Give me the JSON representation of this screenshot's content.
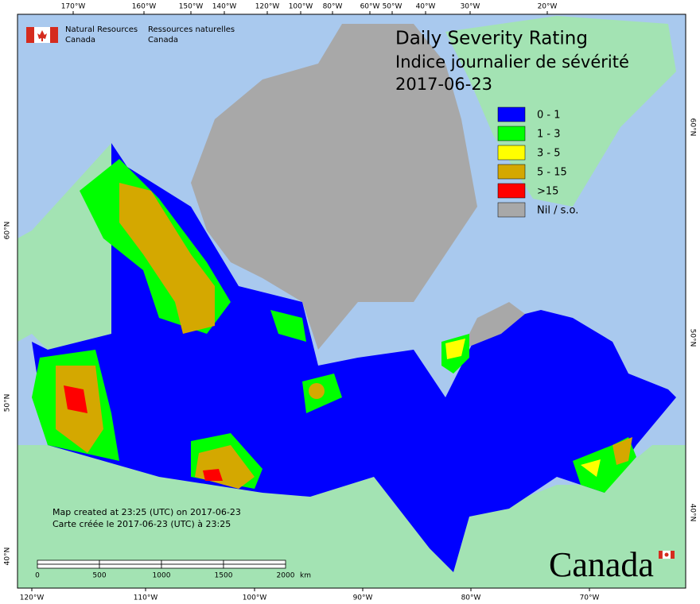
{
  "header": {
    "agency_en": [
      "Natural Resources",
      "Canada"
    ],
    "agency_fr": [
      "Ressources naturelles",
      "Canada"
    ]
  },
  "title": [
    "Daily Severity Rating",
    "Indice journalier de sévérité",
    "2017-06-23"
  ],
  "legend": [
    {
      "label": "0 - 1",
      "color": "#0000ff"
    },
    {
      "label": "1 - 3",
      "color": "#00ff00"
    },
    {
      "label": "3 - 5",
      "color": "#ffff00"
    },
    {
      "label": "5 - 15",
      "color": "#d4a800"
    },
    {
      "label": ">15",
      "color": "#ff0000"
    },
    {
      "label": "Nil / s.o.",
      "color": "#a8a8a8"
    }
  ],
  "top_labels": [
    "170°W",
    "160°W",
    "150°W",
    "140°W",
    "120°W",
    "100°W",
    "80°W",
    "60°W",
    "50°W",
    "40°W",
    "30°W",
    "20°W"
  ],
  "bottom_labels": [
    "120°W",
    "110°W",
    "100°W",
    "90°W",
    "80°W",
    "70°W"
  ],
  "left_labels": [
    "60°N",
    "50°N",
    "40°N"
  ],
  "right_labels": [
    "60°N",
    "50°N",
    "40°N"
  ],
  "credits": [
    "Map created at 23:25 (UTC) on 2017-06-23",
    "Carte créée le 2017-06-23 (UTC) à 23:25"
  ],
  "scale": {
    "ticks": [
      "0",
      "500",
      "1000",
      "1500",
      "2000"
    ],
    "unit": "km"
  },
  "wordmark": "Canada"
}
